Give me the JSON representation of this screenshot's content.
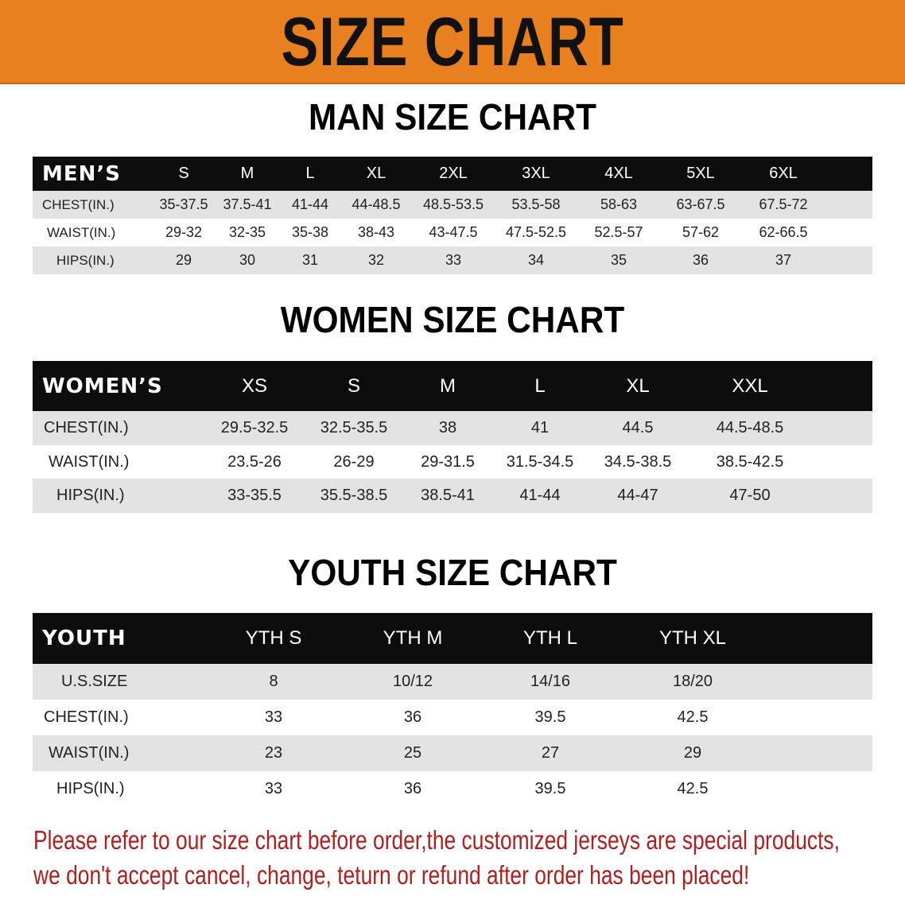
{
  "banner_title": "SIZE CHART",
  "men": {
    "title": "MAN SIZE CHART",
    "header_label": "MEN’S",
    "sizes": [
      "S",
      "M",
      "L",
      "XL",
      "2XL",
      "3XL",
      "4XL",
      "5XL",
      "6XL"
    ],
    "rows": [
      {
        "label": "CHEST(IN.)",
        "values": [
          "35-37.5",
          "37.5-41",
          "41-44",
          "44-48.5",
          "48.5-53.5",
          "53.5-58",
          "58-63",
          "63-67.5",
          "67.5-72"
        ]
      },
      {
        "label": "WAIST(IN.)",
        "values": [
          "29-32",
          "32-35",
          "35-38",
          "38-43",
          "43-47.5",
          "47.5-52.5",
          "52.5-57",
          "57-62",
          "62-66.5"
        ]
      },
      {
        "label": "HIPS(IN.)",
        "values": [
          "29",
          "30",
          "31",
          "32",
          "33",
          "34",
          "35",
          "36",
          "37"
        ]
      }
    ]
  },
  "women": {
    "title": "WOMEN SIZE CHART",
    "header_label": "WOMEN’S",
    "sizes": [
      "XS",
      "S",
      "M",
      "L",
      "XL",
      "XXL"
    ],
    "rows": [
      {
        "label": "CHEST(IN.)",
        "values": [
          "29.5-32.5",
          "32.5-35.5",
          "38",
          "41",
          "44.5",
          "44.5-48.5"
        ]
      },
      {
        "label": "WAIST(IN.)",
        "values": [
          "23.5-26",
          "26-29",
          "29-31.5",
          "31.5-34.5",
          "34.5-38.5",
          "38.5-42.5"
        ]
      },
      {
        "label": "HIPS(IN.)",
        "values": [
          "33-35.5",
          "35.5-38.5",
          "38.5-41",
          "41-44",
          "44-47",
          "47-50"
        ]
      }
    ]
  },
  "youth": {
    "title": "YOUTH SIZE CHART",
    "header_label": "YOUTH",
    "sizes": [
      "YTH S",
      "YTH M",
      "YTH L",
      "YTH XL"
    ],
    "rows": [
      {
        "label": "U.S.SIZE",
        "values": [
          "8",
          "10/12",
          "14/16",
          "18/20"
        ]
      },
      {
        "label": "CHEST(IN.)",
        "values": [
          "33",
          "36",
          "39.5",
          "42.5"
        ]
      },
      {
        "label": "WAIST(IN.)",
        "values": [
          "23",
          "25",
          "27",
          "29"
        ]
      },
      {
        "label": "HIPS(IN.)",
        "values": [
          "33",
          "36",
          "39.5",
          "42.5"
        ]
      }
    ]
  },
  "notice": {
    "line1": "Please refer to our size chart before order,the customized jerseys are special products,",
    "line2": "we don't accept cancel, change, teturn or refund after order has been placed!"
  },
  "colors": {
    "banner": "#e8801f",
    "header_bg": "#0d0d0d",
    "row_gray": "#e3e3e3",
    "notice_text": "#b01e1e"
  }
}
